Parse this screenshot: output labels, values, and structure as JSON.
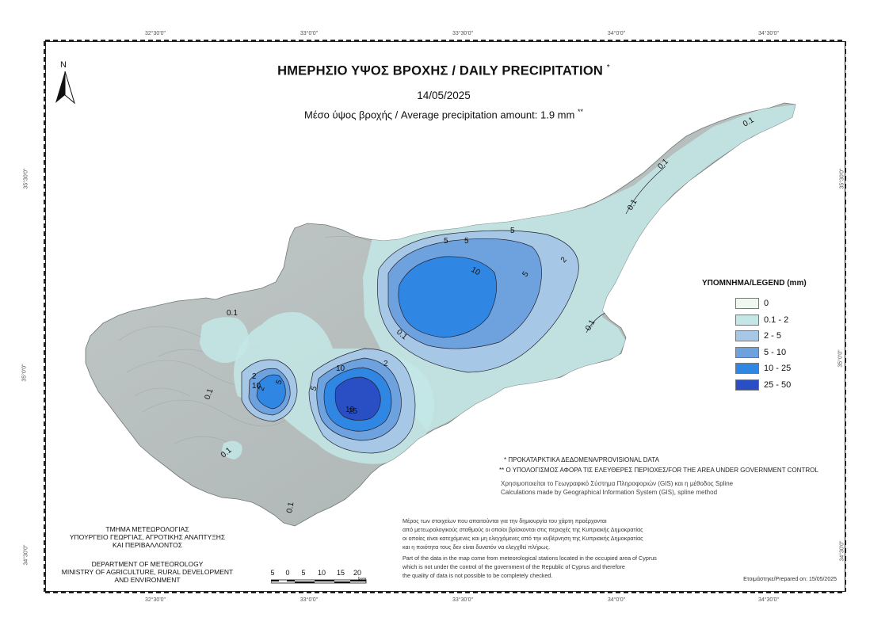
{
  "title": {
    "main": "ΗΜΕΡΗΣΙΟ ΥΨΟΣ ΒΡΟΧΗΣ / DAILY PRECIPITATION",
    "mark": "*"
  },
  "date": "14/05/2025",
  "average": {
    "text": "Μέσο ύψος βροχής / Average precipitation amount: 1.9 mm",
    "mark": "**"
  },
  "north_label": "N",
  "graticule": {
    "top": [
      "32°30'0\"",
      "33°0'0\"",
      "33°30'0\"",
      "34°0'0\"",
      "34°30'0\""
    ],
    "bottom": [
      "32°30'0\"",
      "33°0'0\"",
      "33°30'0\"",
      "34°0'0\"",
      "34°30'0\""
    ],
    "left": [
      "35°30'0\"",
      "35°0'0\"",
      "34°30'0\""
    ],
    "right": [
      "35°30'0\"",
      "35°0'0\"",
      "34°30'0\""
    ]
  },
  "legend": {
    "title": "ΥΠΟΜΝΗΜΑ/LEGEND (mm)",
    "items": [
      {
        "label": "0",
        "color": "#eef8ee"
      },
      {
        "label": "0.1 - 2",
        "color": "#c3e7e6"
      },
      {
        "label": "2 - 5",
        "color": "#a6c8e6"
      },
      {
        "label": "5 - 10",
        "color": "#6ea2de"
      },
      {
        "label": "10 - 25",
        "color": "#2f86e3"
      },
      {
        "label": "25 - 50",
        "color": "#2a4fc4"
      }
    ]
  },
  "contour_labels": [
    "0.1",
    "0.1",
    "0.1",
    "0.1",
    "0.1",
    "0.1",
    "0.1",
    "0.1",
    "0.1",
    "2",
    "2",
    "2",
    "5",
    "5",
    "5",
    "5",
    "10",
    "10",
    "10",
    "10",
    "25",
    "2",
    "5",
    "5"
  ],
  "notes": {
    "provisional": "* ΠΡΟΚΑΤΑΡΚΤΙΚΑ ΔΕΔΟΜΕΝΑ/PROVISIONAL DATA",
    "area": "** Ο ΥΠΟΛΟΓΙΣΜΟΣ ΑΦΟΡΑ ΤΙΣ ΕΛΕΥΘΕΡΕΣ ΠΕΡΙΟΧΕΣ/FOR THE AREA UNDER GOVERNMENT CONTROL",
    "gis_gr": "Χρησιμοποιείται το Γεωγραφικό Σύστημα Πληροφοριών (GIS) και η μέθοδος Spline",
    "gis_en": "Calculations made by Geographical Information System (GIS), spline method"
  },
  "disclaimer_gr": [
    "Μέρος των στοιχείων που απαιτούνται για την δημιουργία του χάρτη προέρχονται",
    "από μετεωρολογικούς σταθμούς οι οποίοι βρίσκονται στις περιοχές της Κυπριακής Δημοκρατίας",
    "οι οποίες είναι κατεχόμενες και μη ελεγχόμενες από την κυβέρνηση της Κυπριακής Δημοκρατίας",
    "και η ποιότητα τους δεν είναι δυνατόν να ελεγχθεί πλήρως."
  ],
  "disclaimer_en": [
    "Part of the data in the map come from meteorological stations located in the occupied area of Cyprus",
    "which is not under the control of the government of the Republic of Cyprus and therefore",
    "the quality of data is not possible to be completely checked."
  ],
  "department": {
    "gr": [
      "ΤΜΗΜΑ ΜΕΤΕΩΡΟΛΟΓΙΑΣ",
      "ΥΠΟΥΡΓΕΙΟ ΓΕΩΡΓΙΑΣ, ΑΓΡΟΤΙΚΗΣ ΑΝΑΠΤΥΞΗΣ",
      "ΚΑΙ ΠΕΡΙΒΑΛΛΟΝΤΟΣ"
    ],
    "en": [
      "DEPARTMENT OF METEOROLOGY",
      "MINISTRY OF AGRICULTURE, RURAL DEVELOPMENT",
      "AND ENVIRONMENT"
    ]
  },
  "scale": {
    "ticks": [
      "5",
      "0",
      "5",
      "10",
      "15",
      "20"
    ],
    "unit": "km"
  },
  "prepared": "Ετοιμάστηκε/Prepared on: 15/05/2025"
}
